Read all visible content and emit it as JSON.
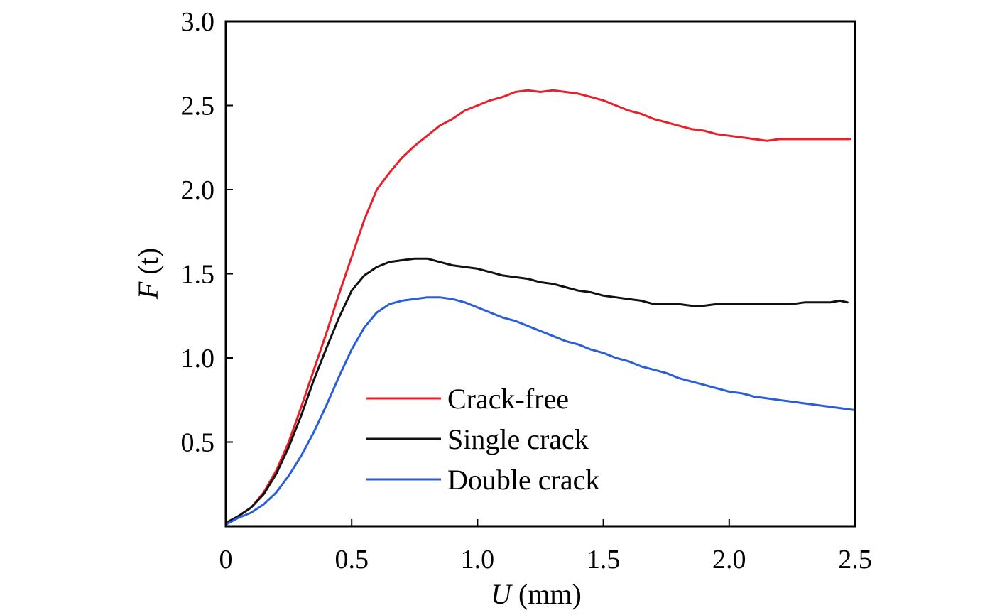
{
  "chart_data": {
    "type": "line",
    "title": "",
    "xlabel": {
      "symbol": "U",
      "unit": " (mm)"
    },
    "ylabel": {
      "symbol": "F",
      "unit": " (t)"
    },
    "xlim": [
      0,
      2.5
    ],
    "ylim": [
      0,
      3.0
    ],
    "x_ticks": [
      {
        "value": 0,
        "label": "0"
      },
      {
        "value": 0.5,
        "label": "0.5"
      },
      {
        "value": 1.0,
        "label": "1.0"
      },
      {
        "value": 1.5,
        "label": "1.5"
      },
      {
        "value": 2.0,
        "label": "2.0"
      },
      {
        "value": 2.5,
        "label": "2.5"
      }
    ],
    "y_ticks": [
      {
        "value": 0.5,
        "label": "0.5"
      },
      {
        "value": 1.0,
        "label": "1.0"
      },
      {
        "value": 1.5,
        "label": "1.5"
      },
      {
        "value": 2.0,
        "label": "2.0"
      },
      {
        "value": 2.5,
        "label": "2.5"
      },
      {
        "value": 3.0,
        "label": "3.0"
      }
    ],
    "grid": false,
    "legend_position": "lower-left",
    "series": [
      {
        "name": "Crack-free",
        "color": "#e8202a",
        "points": [
          [
            0,
            0.02
          ],
          [
            0.05,
            0.06
          ],
          [
            0.1,
            0.11
          ],
          [
            0.15,
            0.2
          ],
          [
            0.2,
            0.33
          ],
          [
            0.25,
            0.5
          ],
          [
            0.3,
            0.71
          ],
          [
            0.35,
            0.93
          ],
          [
            0.4,
            1.15
          ],
          [
            0.45,
            1.38
          ],
          [
            0.5,
            1.6
          ],
          [
            0.55,
            1.82
          ],
          [
            0.6,
            2.0
          ],
          [
            0.65,
            2.1
          ],
          [
            0.7,
            2.19
          ],
          [
            0.75,
            2.26
          ],
          [
            0.8,
            2.32
          ],
          [
            0.85,
            2.38
          ],
          [
            0.9,
            2.42
          ],
          [
            0.95,
            2.47
          ],
          [
            1.0,
            2.5
          ],
          [
            1.05,
            2.53
          ],
          [
            1.1,
            2.55
          ],
          [
            1.15,
            2.58
          ],
          [
            1.2,
            2.59
          ],
          [
            1.25,
            2.58
          ],
          [
            1.3,
            2.59
          ],
          [
            1.35,
            2.58
          ],
          [
            1.4,
            2.57
          ],
          [
            1.45,
            2.55
          ],
          [
            1.5,
            2.53
          ],
          [
            1.55,
            2.5
          ],
          [
            1.6,
            2.47
          ],
          [
            1.65,
            2.45
          ],
          [
            1.7,
            2.42
          ],
          [
            1.75,
            2.4
          ],
          [
            1.8,
            2.38
          ],
          [
            1.85,
            2.36
          ],
          [
            1.9,
            2.35
          ],
          [
            1.95,
            2.33
          ],
          [
            2.0,
            2.32
          ],
          [
            2.05,
            2.31
          ],
          [
            2.1,
            2.3
          ],
          [
            2.15,
            2.29
          ],
          [
            2.2,
            2.3
          ],
          [
            2.25,
            2.3
          ],
          [
            2.3,
            2.3
          ],
          [
            2.35,
            2.3
          ],
          [
            2.4,
            2.3
          ],
          [
            2.45,
            2.3
          ],
          [
            2.48,
            2.3
          ]
        ]
      },
      {
        "name": "Single crack",
        "color": "#111111",
        "points": [
          [
            0,
            0.02
          ],
          [
            0.05,
            0.06
          ],
          [
            0.1,
            0.11
          ],
          [
            0.15,
            0.19
          ],
          [
            0.2,
            0.31
          ],
          [
            0.25,
            0.47
          ],
          [
            0.3,
            0.66
          ],
          [
            0.35,
            0.87
          ],
          [
            0.4,
            1.06
          ],
          [
            0.45,
            1.24
          ],
          [
            0.5,
            1.4
          ],
          [
            0.55,
            1.49
          ],
          [
            0.6,
            1.54
          ],
          [
            0.65,
            1.57
          ],
          [
            0.7,
            1.58
          ],
          [
            0.75,
            1.59
          ],
          [
            0.8,
            1.59
          ],
          [
            0.85,
            1.57
          ],
          [
            0.9,
            1.55
          ],
          [
            0.95,
            1.54
          ],
          [
            1.0,
            1.53
          ],
          [
            1.05,
            1.51
          ],
          [
            1.1,
            1.49
          ],
          [
            1.15,
            1.48
          ],
          [
            1.2,
            1.47
          ],
          [
            1.25,
            1.45
          ],
          [
            1.3,
            1.44
          ],
          [
            1.35,
            1.42
          ],
          [
            1.4,
            1.4
          ],
          [
            1.45,
            1.39
          ],
          [
            1.5,
            1.37
          ],
          [
            1.55,
            1.36
          ],
          [
            1.6,
            1.35
          ],
          [
            1.65,
            1.34
          ],
          [
            1.7,
            1.32
          ],
          [
            1.75,
            1.32
          ],
          [
            1.8,
            1.32
          ],
          [
            1.85,
            1.31
          ],
          [
            1.9,
            1.31
          ],
          [
            1.95,
            1.32
          ],
          [
            2.0,
            1.32
          ],
          [
            2.05,
            1.32
          ],
          [
            2.1,
            1.32
          ],
          [
            2.15,
            1.32
          ],
          [
            2.2,
            1.32
          ],
          [
            2.25,
            1.32
          ],
          [
            2.3,
            1.33
          ],
          [
            2.35,
            1.33
          ],
          [
            2.4,
            1.33
          ],
          [
            2.44,
            1.34
          ],
          [
            2.47,
            1.33
          ]
        ]
      },
      {
        "name": "Double crack",
        "color": "#2a5ed8",
        "points": [
          [
            0,
            0.01
          ],
          [
            0.05,
            0.05
          ],
          [
            0.1,
            0.08
          ],
          [
            0.15,
            0.13
          ],
          [
            0.2,
            0.2
          ],
          [
            0.25,
            0.3
          ],
          [
            0.3,
            0.42
          ],
          [
            0.35,
            0.56
          ],
          [
            0.4,
            0.72
          ],
          [
            0.45,
            0.89
          ],
          [
            0.5,
            1.05
          ],
          [
            0.55,
            1.18
          ],
          [
            0.6,
            1.27
          ],
          [
            0.65,
            1.32
          ],
          [
            0.7,
            1.34
          ],
          [
            0.75,
            1.35
          ],
          [
            0.8,
            1.36
          ],
          [
            0.85,
            1.36
          ],
          [
            0.9,
            1.35
          ],
          [
            0.95,
            1.33
          ],
          [
            1.0,
            1.3
          ],
          [
            1.05,
            1.27
          ],
          [
            1.1,
            1.24
          ],
          [
            1.15,
            1.22
          ],
          [
            1.2,
            1.19
          ],
          [
            1.25,
            1.16
          ],
          [
            1.3,
            1.13
          ],
          [
            1.35,
            1.1
          ],
          [
            1.4,
            1.08
          ],
          [
            1.45,
            1.05
          ],
          [
            1.5,
            1.03
          ],
          [
            1.55,
            1.0
          ],
          [
            1.6,
            0.98
          ],
          [
            1.65,
            0.95
          ],
          [
            1.7,
            0.93
          ],
          [
            1.75,
            0.91
          ],
          [
            1.8,
            0.88
          ],
          [
            1.85,
            0.86
          ],
          [
            1.9,
            0.84
          ],
          [
            1.95,
            0.82
          ],
          [
            2.0,
            0.8
          ],
          [
            2.05,
            0.79
          ],
          [
            2.1,
            0.77
          ],
          [
            2.15,
            0.76
          ],
          [
            2.2,
            0.75
          ],
          [
            2.25,
            0.74
          ],
          [
            2.3,
            0.73
          ],
          [
            2.35,
            0.72
          ],
          [
            2.4,
            0.71
          ],
          [
            2.45,
            0.7
          ],
          [
            2.5,
            0.69
          ]
        ]
      }
    ]
  }
}
